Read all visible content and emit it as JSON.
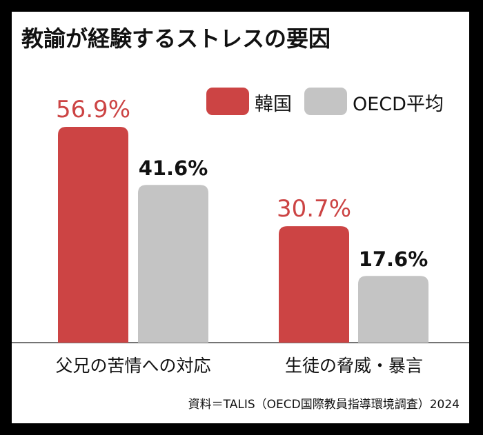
{
  "title": "教諭が経験するストレスの要因",
  "source": "資料＝TALIS（OECD国際教員指導環境調査）2024",
  "colors": {
    "korea": "#cc4444",
    "oecd": "#c4c4c4",
    "korea_label": "#cc4444",
    "oecd_label": "#111111"
  },
  "chart_data": {
    "type": "bar",
    "categories": [
      "父兄の苦情への対応",
      "生徒の脅威・暴言"
    ],
    "series": [
      {
        "name": "韓国",
        "values": [
          56.9,
          30.7
        ],
        "labels": [
          "56.9%",
          "30.7%"
        ]
      },
      {
        "name": "OECD平均",
        "values": [
          41.6,
          17.6
        ],
        "labels": [
          "41.6%",
          "17.6%"
        ]
      }
    ],
    "title": "教諭が経験するストレスの要因",
    "ylim": [
      0,
      60
    ],
    "grid": false,
    "legend": "top-right"
  }
}
